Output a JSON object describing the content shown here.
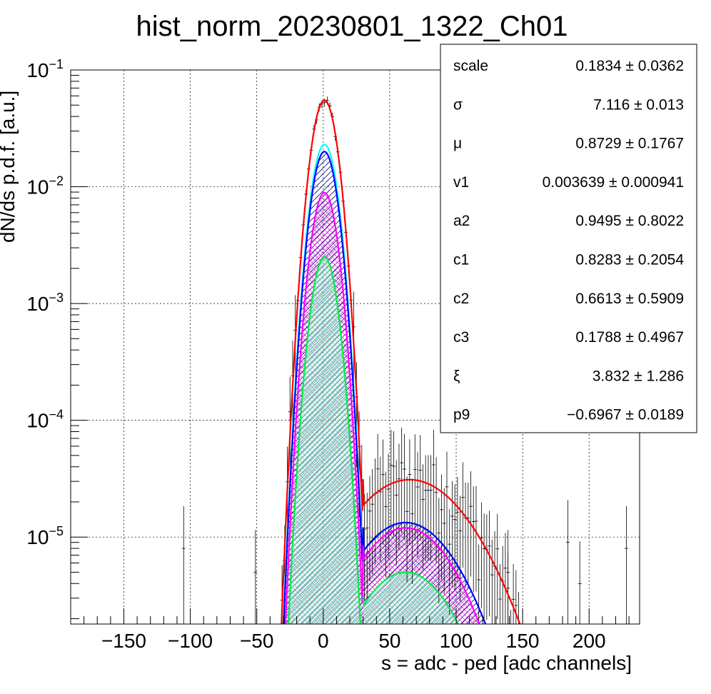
{
  "chart_data": {
    "type": "line",
    "title": "hist_norm_20230801_1322_Ch01",
    "xlabel": "s = adc - ped [adc channels]",
    "ylabel": "dN/ds p.d.f. [a.u.]",
    "xlim": [
      -190,
      238
    ],
    "ylim": [
      1.8e-06,
      0.1
    ],
    "yscale": "log",
    "grid": true,
    "x_ticks": [
      -150,
      -100,
      -50,
      0,
      50,
      100,
      150,
      200
    ],
    "x_tick_labels": [
      "−150",
      "−100",
      "−50",
      "0",
      "50",
      "100",
      "150",
      "200"
    ],
    "y_ticks": [
      {
        "value": 1e-05,
        "base": "10",
        "exp": "−5"
      },
      {
        "value": 0.0001,
        "base": "10",
        "exp": "−4"
      },
      {
        "value": 0.001,
        "base": "10",
        "exp": "−3"
      },
      {
        "value": 0.01,
        "base": "10",
        "exp": "−2"
      },
      {
        "value": 0.1,
        "base": "10",
        "exp": "−1"
      }
    ],
    "series": [
      {
        "style": "line",
        "color": "#ff0000",
        "pedestal": {
          "amp": 0.055,
          "mu": 0.87,
          "sigma": 7.116,
          "end": 30
        },
        "bump": {
          "amp": 3.1e-05,
          "mu": 65,
          "width": 44
        }
      },
      {
        "style": "line",
        "color": "#00ffff",
        "pedestal": {
          "amp": 0.023,
          "mu": 0.87,
          "sigma": 7.116,
          "end": 30
        },
        "bump": null
      },
      {
        "style": "hatch",
        "color": "#0000ff",
        "pedestal": {
          "amp": 0.02,
          "mu": 0.87,
          "sigma": 7.116,
          "end": 30
        },
        "bump": {
          "amp": 1.33e-05,
          "mu": 62,
          "width": 38
        }
      },
      {
        "style": "hatch",
        "color": "#ff00ff",
        "pedestal": {
          "amp": 0.0089,
          "mu": 0.87,
          "sigma": 7.116,
          "end": 30
        },
        "bump": {
          "amp": 1.2e-05,
          "mu": 62,
          "width": 36
        }
      },
      {
        "style": "hatch",
        "color": "#00ee44",
        "pedestal": {
          "amp": 0.0025,
          "mu": 0.87,
          "sigma": 7.116,
          "end": 30
        },
        "bump": {
          "amp": 5e-06,
          "mu": 62,
          "width": 35
        }
      }
    ],
    "data_points": {
      "x_range": [
        -185,
        236
      ],
      "bin_width": 2,
      "outlier_bins": [
        {
          "x": -105,
          "y": 8e-06
        },
        {
          "x": -51,
          "y": 5e-06
        },
        {
          "x": 139,
          "y": 5e-06
        },
        {
          "x": 184,
          "y": 9e-06
        },
        {
          "x": 193,
          "y": 4e-06
        },
        {
          "x": 228,
          "y": 8e-06
        }
      ]
    },
    "stats_box": {
      "rows": [
        {
          "name": "scale",
          "value": "0.1834 ± 0.0362"
        },
        {
          "name": "σ",
          "value": "7.116 ± 0.013"
        },
        {
          "name": "μ",
          "value": "0.8729 ± 0.1767"
        },
        {
          "name": "v1",
          "value": "0.003639 ± 0.000941"
        },
        {
          "name": "a2",
          "value": "0.9495 ± 0.8022"
        },
        {
          "name": "c1",
          "value": "0.8283 ± 0.2054"
        },
        {
          "name": "c2",
          "value": "0.6613 ± 0.5909"
        },
        {
          "name": "c3",
          "value": "0.1788 ± 0.4967"
        },
        {
          "name": "ξ",
          "value": "3.832 ± 1.286"
        },
        {
          "name": "p9",
          "value": "−0.6967 ± 0.0189"
        }
      ]
    }
  }
}
